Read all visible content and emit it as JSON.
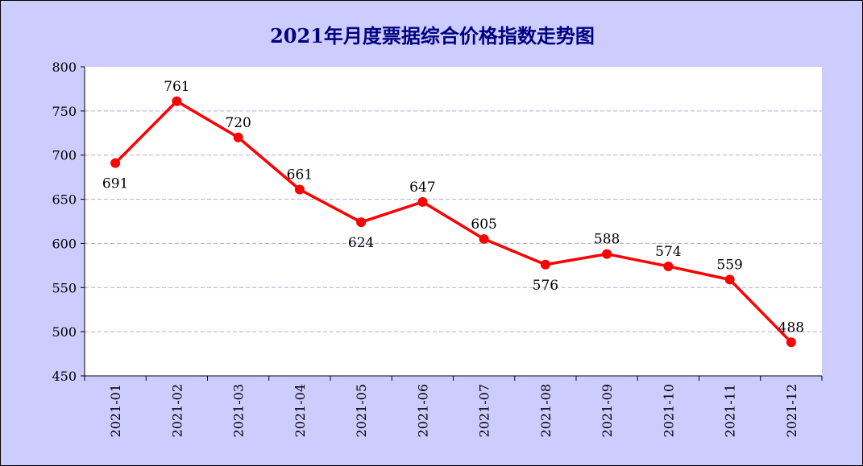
{
  "chart_data": {
    "type": "line",
    "title": "2021年月度票据综合价格指数走势图",
    "xlabel": "",
    "ylabel": "",
    "categories": [
      "2021-01",
      "2021-02",
      "2021-03",
      "2021-04",
      "2021-05",
      "2021-06",
      "2021-07",
      "2021-08",
      "2021-09",
      "2021-10",
      "2021-11",
      "2021-12"
    ],
    "series": [
      {
        "values": [
          691,
          761,
          720,
          661,
          624,
          647,
          605,
          576,
          588,
          574,
          559,
          488
        ]
      }
    ],
    "ylim": [
      450,
      800
    ],
    "yticks": [
      450,
      500,
      550,
      600,
      650,
      700,
      750,
      800
    ],
    "grid": true,
    "legend": "none",
    "data_labels": true,
    "colors": {
      "line": "#ff0000",
      "plot_background": "#ffffff",
      "outer_background": "#ccccff",
      "grid": "#aaaaee",
      "title": "#000080",
      "axis": "#000000"
    }
  }
}
